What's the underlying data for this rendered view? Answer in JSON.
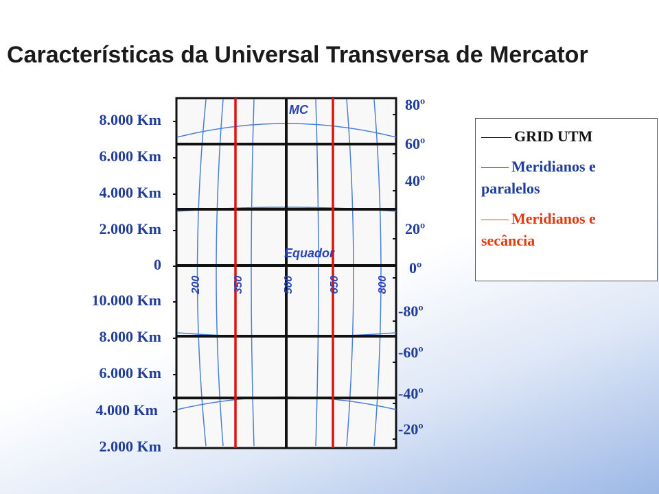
{
  "header": {
    "title": "Características  da Universal Transversa de Mercator"
  },
  "left_labels": [
    "8.000 Km",
    "6.000 Km",
    "4.000 Km",
    "2.000 Km",
    "0",
    "10.000 Km",
    "8.000 Km",
    "6.000 Km",
    "4.000 Km",
    "2.000 Km"
  ],
  "right_labels": [
    "80º",
    "60º",
    "40º",
    "20º",
    "0º",
    "-80º",
    "-60º",
    "-40º",
    "-20º"
  ],
  "diagram": {
    "meridian_label": "MC",
    "equator_label": "Equador",
    "eastings": [
      "200",
      "350",
      "500",
      "650",
      "800"
    ]
  },
  "legend": [
    "GRID UTM",
    "Meridianos e paralelos",
    "Meridianos e secância"
  ]
}
